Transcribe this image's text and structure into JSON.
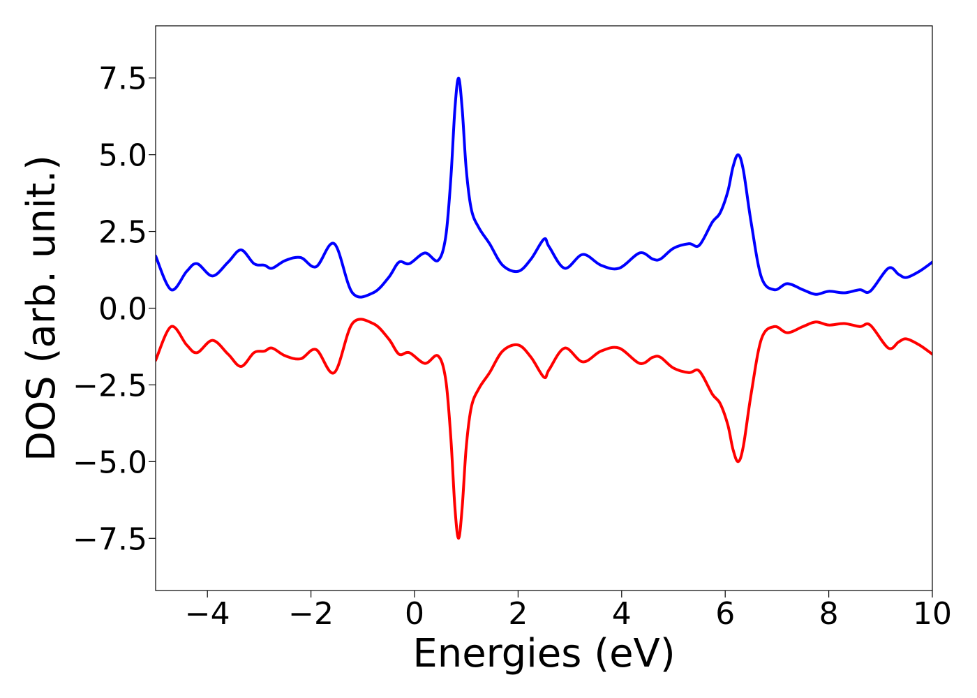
{
  "chart_data": {
    "type": "line",
    "title": "",
    "xlabel": "Energies (eV)",
    "ylabel": "DOS (arb. unit.)",
    "xlim": [
      -5,
      10
    ],
    "ylim": [
      -9.2,
      9.2
    ],
    "x_ticks": [
      -4,
      -2,
      0,
      2,
      4,
      6,
      8,
      10
    ],
    "x_tick_labels": [
      "−4",
      "−2",
      "0",
      "2",
      "4",
      "6",
      "8",
      "10"
    ],
    "y_ticks": [
      7.5,
      5.0,
      2.5,
      0.0,
      -2.5,
      -5.0,
      -7.5
    ],
    "y_tick_labels": [
      "7.5",
      "5.0",
      "2.5",
      "0.0",
      "−2.5",
      "−5.0",
      "−7.5"
    ],
    "grid": false,
    "legend": "none",
    "series": [
      {
        "color": "#0000ff",
        "x": [
          -5.0,
          -4.7,
          -4.4,
          -4.2,
          -3.9,
          -3.6,
          -3.35,
          -3.1,
          -2.9,
          -2.75,
          -2.5,
          -2.2,
          -1.9,
          -1.55,
          -1.2,
          -0.8,
          -0.5,
          -0.3,
          -0.1,
          0.2,
          0.45,
          0.6,
          0.7,
          0.78,
          0.85,
          0.92,
          1.0,
          1.1,
          1.25,
          1.45,
          1.7,
          2.0,
          2.25,
          2.5,
          2.6,
          2.9,
          3.25,
          3.6,
          3.95,
          4.35,
          4.6,
          4.75,
          5.0,
          5.3,
          5.5,
          5.75,
          5.9,
          6.05,
          6.15,
          6.25,
          6.35,
          6.5,
          6.7,
          6.95,
          7.2,
          7.5,
          7.75,
          8.0,
          8.3,
          8.6,
          8.8,
          9.15,
          9.35,
          9.5,
          9.75,
          10.0
        ],
        "values": [
          1.7,
          0.6,
          1.2,
          1.45,
          1.05,
          1.5,
          1.9,
          1.45,
          1.4,
          1.3,
          1.55,
          1.65,
          1.35,
          2.1,
          0.5,
          0.5,
          1.0,
          1.5,
          1.45,
          1.8,
          1.55,
          2.3,
          4.2,
          6.5,
          7.5,
          6.5,
          4.5,
          3.2,
          2.6,
          2.1,
          1.4,
          1.2,
          1.6,
          2.25,
          2.0,
          1.3,
          1.75,
          1.4,
          1.3,
          1.8,
          1.6,
          1.6,
          1.95,
          2.1,
          2.05,
          2.8,
          3.1,
          3.8,
          4.6,
          5.0,
          4.5,
          2.8,
          1.0,
          0.6,
          0.8,
          0.6,
          0.45,
          0.55,
          0.5,
          0.6,
          0.55,
          1.3,
          1.1,
          1.0,
          1.2,
          1.5
        ]
      },
      {
        "color": "#ff0000",
        "x": [
          -5.0,
          -4.7,
          -4.4,
          -4.2,
          -3.9,
          -3.6,
          -3.35,
          -3.1,
          -2.9,
          -2.75,
          -2.5,
          -2.2,
          -1.9,
          -1.55,
          -1.2,
          -0.8,
          -0.5,
          -0.3,
          -0.1,
          0.2,
          0.45,
          0.6,
          0.7,
          0.78,
          0.85,
          0.92,
          1.0,
          1.1,
          1.25,
          1.45,
          1.7,
          2.0,
          2.25,
          2.5,
          2.6,
          2.9,
          3.25,
          3.6,
          3.95,
          4.35,
          4.6,
          4.75,
          5.0,
          5.3,
          5.5,
          5.75,
          5.9,
          6.05,
          6.15,
          6.25,
          6.35,
          6.5,
          6.7,
          6.95,
          7.2,
          7.5,
          7.75,
          8.0,
          8.3,
          8.6,
          8.8,
          9.15,
          9.35,
          9.5,
          9.75,
          10.0
        ],
        "values": [
          -1.7,
          -0.6,
          -1.2,
          -1.45,
          -1.05,
          -1.5,
          -1.9,
          -1.45,
          -1.4,
          -1.3,
          -1.55,
          -1.65,
          -1.35,
          -2.1,
          -0.5,
          -0.5,
          -1.0,
          -1.5,
          -1.45,
          -1.8,
          -1.55,
          -2.3,
          -4.2,
          -6.5,
          -7.5,
          -6.5,
          -4.5,
          -3.2,
          -2.6,
          -2.1,
          -1.4,
          -1.2,
          -1.6,
          -2.25,
          -2.0,
          -1.3,
          -1.75,
          -1.4,
          -1.3,
          -1.8,
          -1.6,
          -1.6,
          -1.95,
          -2.1,
          -2.05,
          -2.8,
          -3.1,
          -3.8,
          -4.6,
          -5.0,
          -4.5,
          -2.8,
          -1.0,
          -0.6,
          -0.8,
          -0.6,
          -0.45,
          -0.55,
          -0.5,
          -0.6,
          -0.55,
          -1.3,
          -1.1,
          -1.0,
          -1.2,
          -1.5
        ]
      }
    ]
  }
}
